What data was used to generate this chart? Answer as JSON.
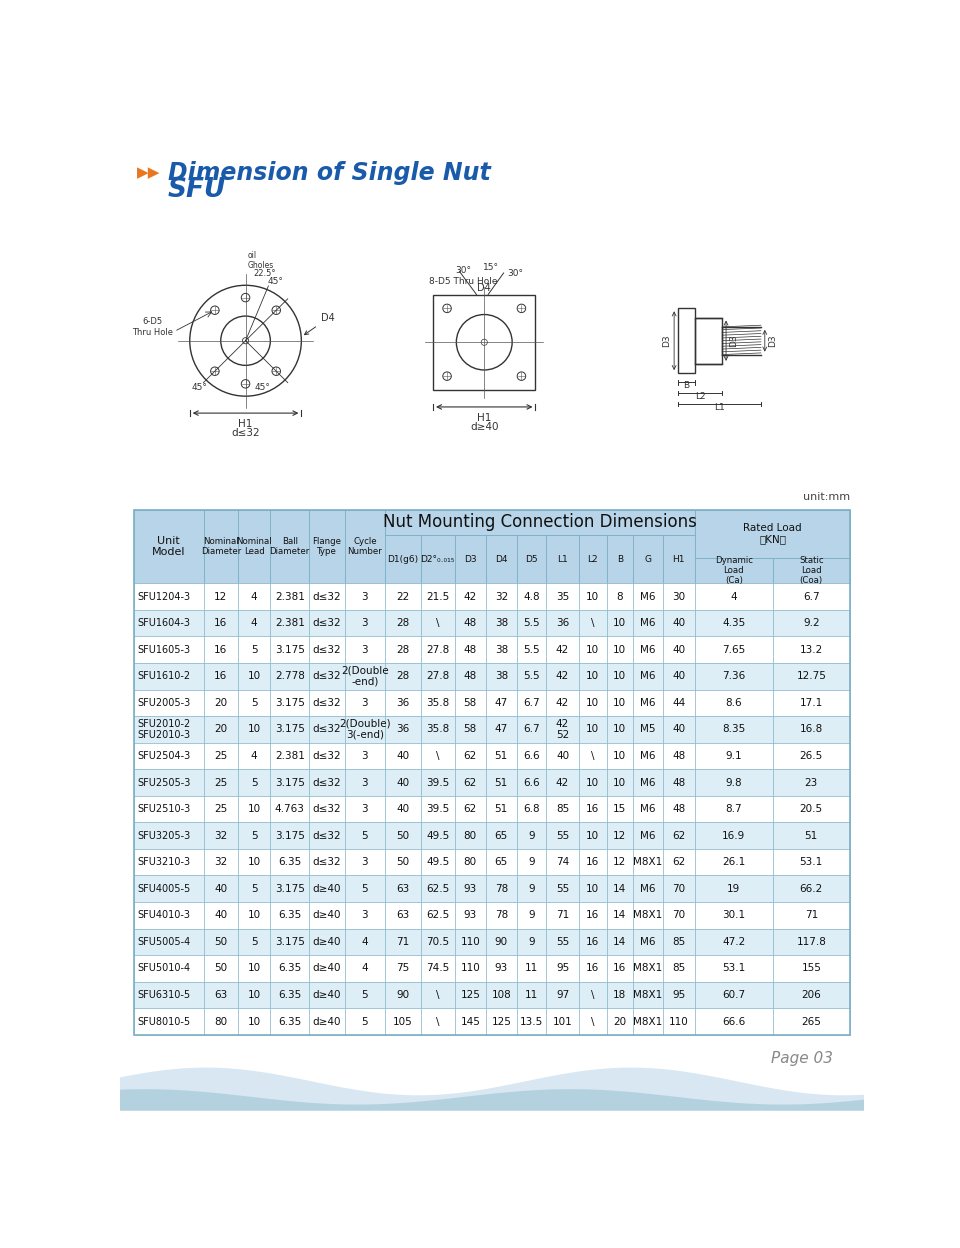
{
  "title_line1": "Dimension of Single Nut",
  "title_line2": "SFU",
  "title_color": "#1a5aaa",
  "arrow_color": "#e87722",
  "bg_color": "#ffffff",
  "unit_text": "unit:mm",
  "page_text": "Page 03",
  "rows": [
    [
      "SFU1204-3",
      "12",
      "4",
      "2.381",
      "d≤32",
      "3",
      "22",
      "21.5",
      "42",
      "32",
      "4.8",
      "35",
      "10",
      "8",
      "M6",
      "30",
      "4",
      "6.7"
    ],
    [
      "SFU1604-3",
      "16",
      "4",
      "2.381",
      "d≤32",
      "3",
      "28",
      "\\",
      "48",
      "38",
      "5.5",
      "36",
      "\\",
      "10",
      "M6",
      "40",
      "4.35",
      "9.2"
    ],
    [
      "SFU1605-3",
      "16",
      "5",
      "3.175",
      "d≤32",
      "3",
      "28",
      "27.8",
      "48",
      "38",
      "5.5",
      "42",
      "10",
      "10",
      "M6",
      "40",
      "7.65",
      "13.2"
    ],
    [
      "SFU1610-2",
      "16",
      "10",
      "2.778",
      "d≤32",
      "2(Double\n-end)",
      "28",
      "27.8",
      "48",
      "38",
      "5.5",
      "42",
      "10",
      "10",
      "M6",
      "40",
      "7.36",
      "12.75"
    ],
    [
      "SFU2005-3",
      "20",
      "5",
      "3.175",
      "d≤32",
      "3",
      "36",
      "35.8",
      "58",
      "47",
      "6.7",
      "42",
      "10",
      "10",
      "M6",
      "44",
      "8.6",
      "17.1"
    ],
    [
      "SFU2010-2\nSFU2010-3",
      "20",
      "10",
      "3.175",
      "d≤32",
      "2(Double)\n3(-end)",
      "36",
      "35.8",
      "58",
      "47",
      "6.7",
      "42\n52",
      "10",
      "10",
      "M5",
      "40",
      "8.35",
      "16.8"
    ],
    [
      "SFU2504-3",
      "25",
      "4",
      "2.381",
      "d≤32",
      "3",
      "40",
      "\\",
      "62",
      "51",
      "6.6",
      "40",
      "\\",
      "10",
      "M6",
      "48",
      "9.1",
      "26.5"
    ],
    [
      "SFU2505-3",
      "25",
      "5",
      "3.175",
      "d≤32",
      "3",
      "40",
      "39.5",
      "62",
      "51",
      "6.6",
      "42",
      "10",
      "10",
      "M6",
      "48",
      "9.8",
      "23"
    ],
    [
      "SFU2510-3",
      "25",
      "10",
      "4.763",
      "d≤32",
      "3",
      "40",
      "39.5",
      "62",
      "51",
      "6.8",
      "85",
      "16",
      "15",
      "M6",
      "48",
      "8.7",
      "20.5"
    ],
    [
      "SFU3205-3",
      "32",
      "5",
      "3.175",
      "d≤32",
      "5",
      "50",
      "49.5",
      "80",
      "65",
      "9",
      "55",
      "10",
      "12",
      "M6",
      "62",
      "16.9",
      "51"
    ],
    [
      "SFU3210-3",
      "32",
      "10",
      "6.35",
      "d≤32",
      "3",
      "50",
      "49.5",
      "80",
      "65",
      "9",
      "74",
      "16",
      "12",
      "M8X1",
      "62",
      "26.1",
      "53.1"
    ],
    [
      "SFU4005-5",
      "40",
      "5",
      "3.175",
      "d≥40",
      "5",
      "63",
      "62.5",
      "93",
      "78",
      "9",
      "55",
      "10",
      "14",
      "M6",
      "70",
      "19",
      "66.2"
    ],
    [
      "SFU4010-3",
      "40",
      "10",
      "6.35",
      "d≥40",
      "3",
      "63",
      "62.5",
      "93",
      "78",
      "9",
      "71",
      "16",
      "14",
      "M8X1",
      "70",
      "30.1",
      "71"
    ],
    [
      "SFU5005-4",
      "50",
      "5",
      "3.175",
      "d≥40",
      "4",
      "71",
      "70.5",
      "110",
      "90",
      "9",
      "55",
      "16",
      "14",
      "M6",
      "85",
      "47.2",
      "117.8"
    ],
    [
      "SFU5010-4",
      "50",
      "10",
      "6.35",
      "d≥40",
      "4",
      "75",
      "74.5",
      "110",
      "93",
      "11",
      "95",
      "16",
      "16",
      "M8X1",
      "85",
      "53.1",
      "155"
    ],
    [
      "SFU6310-5",
      "63",
      "10",
      "6.35",
      "d≥40",
      "5",
      "90",
      "\\",
      "125",
      "108",
      "11",
      "97",
      "\\",
      "18",
      "M8X1",
      "95",
      "60.7",
      "206"
    ],
    [
      "SFU8010-5",
      "80",
      "10",
      "6.35",
      "d≥40",
      "5",
      "105",
      "\\",
      "145",
      "125",
      "13.5",
      "101",
      "\\",
      "20",
      "M8X1",
      "110",
      "66.6",
      "265"
    ]
  ],
  "table_header_bg": "#b8d4e8",
  "table_row_bg1": "#ffffff",
  "table_row_bg2": "#ddeef6",
  "table_border_color": "#7aafc5",
  "table_text_color": "#111111"
}
